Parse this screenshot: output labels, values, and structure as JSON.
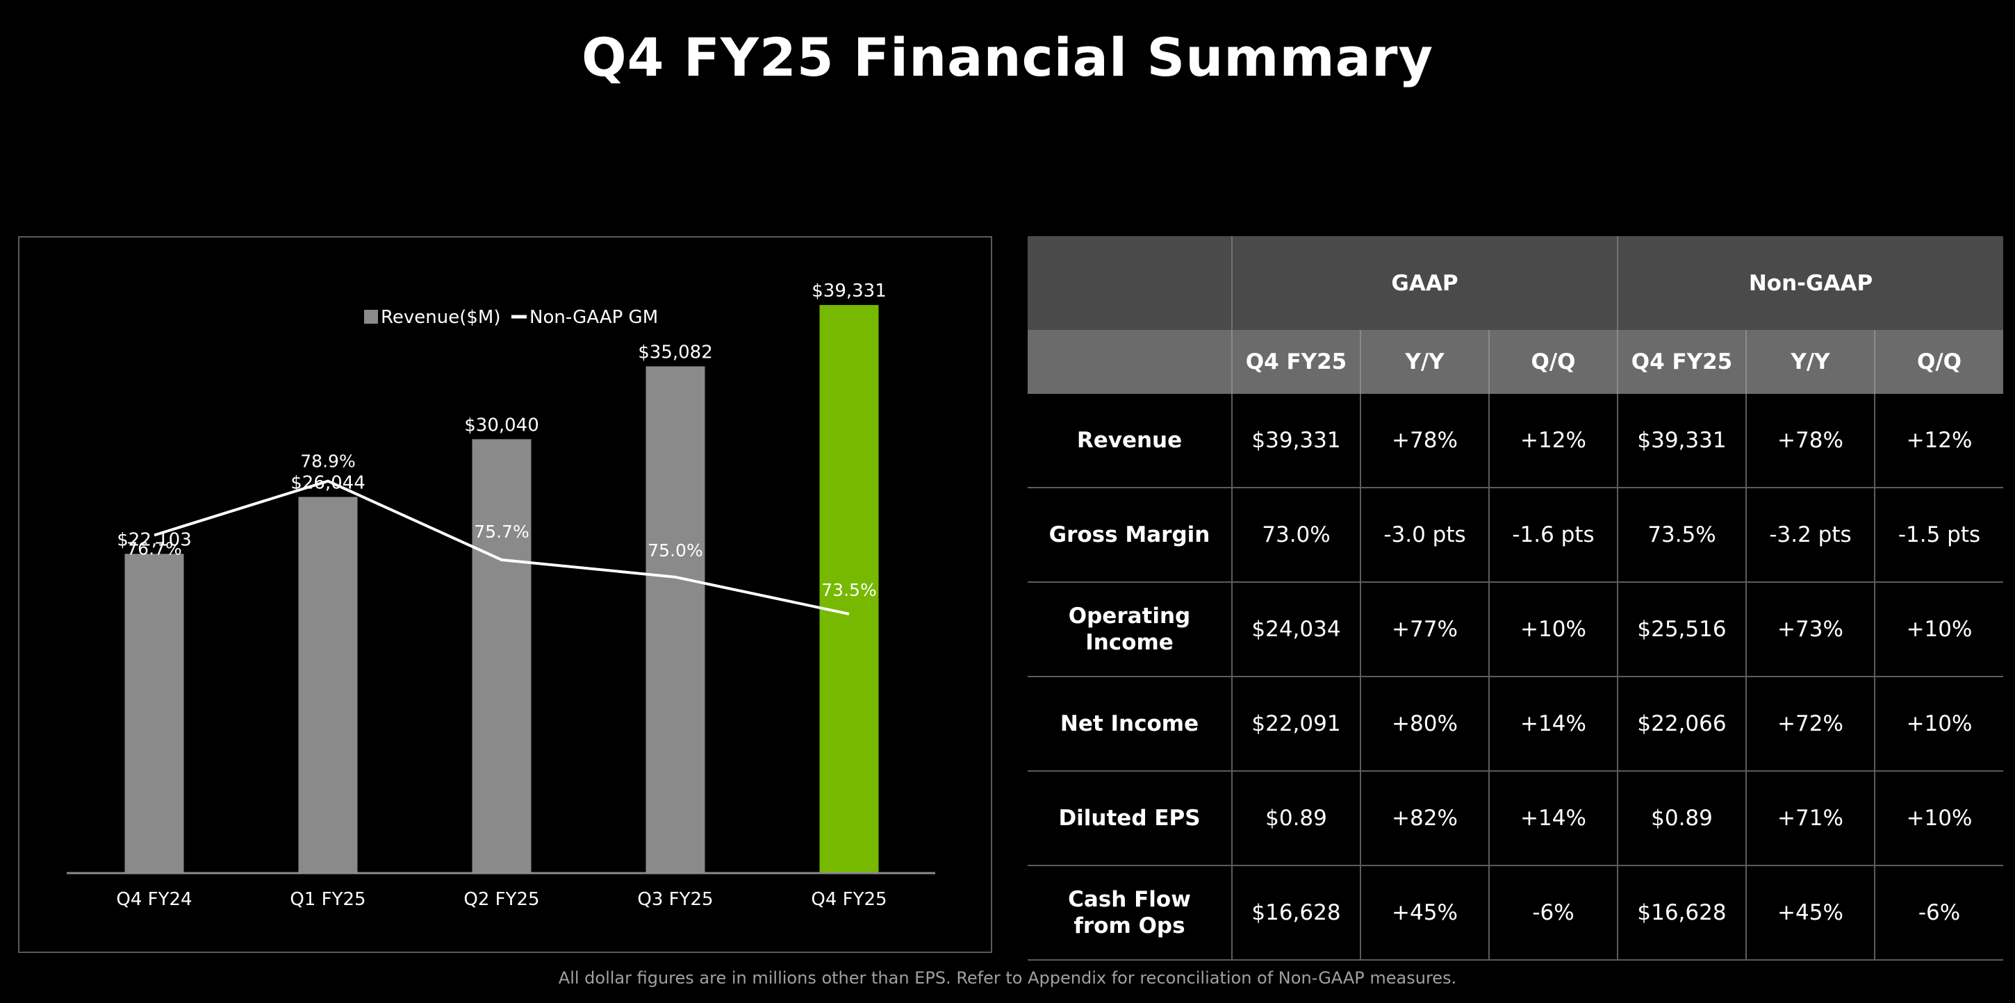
{
  "page": {
    "title": "Q4 FY25 Financial Summary",
    "footnote": "All dollar figures are in millions other than EPS. Refer to Appendix for reconciliation of Non-GAAP measures."
  },
  "colors": {
    "background": "#000000",
    "bar_gray": "#8a8a8a",
    "bar_highlight": "#76b900",
    "line": "#ffffff",
    "header_dark": "#4a4a4a",
    "header_light": "#6b6b6b"
  },
  "chart_data": {
    "type": "bar",
    "title": "",
    "categories": [
      "Q4 FY24",
      "Q1 FY25",
      "Q2 FY25",
      "Q3 FY25",
      "Q4 FY25"
    ],
    "series": [
      {
        "name": "Revenue($M)",
        "type": "bar",
        "values": [
          22103,
          26044,
          30040,
          35082,
          39331
        ],
        "labels": [
          "$22,103",
          "$26,044",
          "$30,040",
          "$35,082",
          "$39,331"
        ],
        "highlight_index": 4
      },
      {
        "name": "Non-GAAP GM",
        "type": "line",
        "values": [
          76.7,
          78.9,
          75.7,
          75.0,
          73.5
        ],
        "labels": [
          "76.7%",
          "78.9%",
          "75.7%",
          "75.0%",
          "73.5%"
        ]
      }
    ],
    "legend": [
      "Revenue($M)",
      "Non-GAAP GM"
    ],
    "legend_position": "top-center",
    "ylim": [
      0,
      44000
    ],
    "gm_ylim": [
      60,
      84
    ],
    "grid": false
  },
  "table": {
    "group_headers": [
      "GAAP",
      "Non-GAAP"
    ],
    "sub_headers": [
      "Q4 FY25",
      "Y/Y",
      "Q/Q",
      "Q4 FY25",
      "Y/Y",
      "Q/Q"
    ],
    "rows": [
      {
        "label": [
          "Revenue"
        ],
        "cells": [
          "$39,331",
          "+78%",
          "+12%",
          "$39,331",
          "+78%",
          "+12%"
        ]
      },
      {
        "label": [
          "Gross Margin"
        ],
        "cells": [
          "73.0%",
          "-3.0 pts",
          "-1.6 pts",
          "73.5%",
          "-3.2 pts",
          "-1.5 pts"
        ]
      },
      {
        "label": [
          "Operating",
          "Income"
        ],
        "cells": [
          "$24,034",
          "+77%",
          "+10%",
          "$25,516",
          "+73%",
          "+10%"
        ]
      },
      {
        "label": [
          "Net Income"
        ],
        "cells": [
          "$22,091",
          "+80%",
          "+14%",
          "$22,066",
          "+72%",
          "+10%"
        ]
      },
      {
        "label": [
          "Diluted EPS"
        ],
        "cells": [
          "$0.89",
          "+82%",
          "+14%",
          "$0.89",
          "+71%",
          "+10%"
        ]
      },
      {
        "label": [
          "Cash Flow",
          "from Ops"
        ],
        "cells": [
          "$16,628",
          "+45%",
          "-6%",
          "$16,628",
          "+45%",
          "-6%"
        ]
      }
    ]
  }
}
